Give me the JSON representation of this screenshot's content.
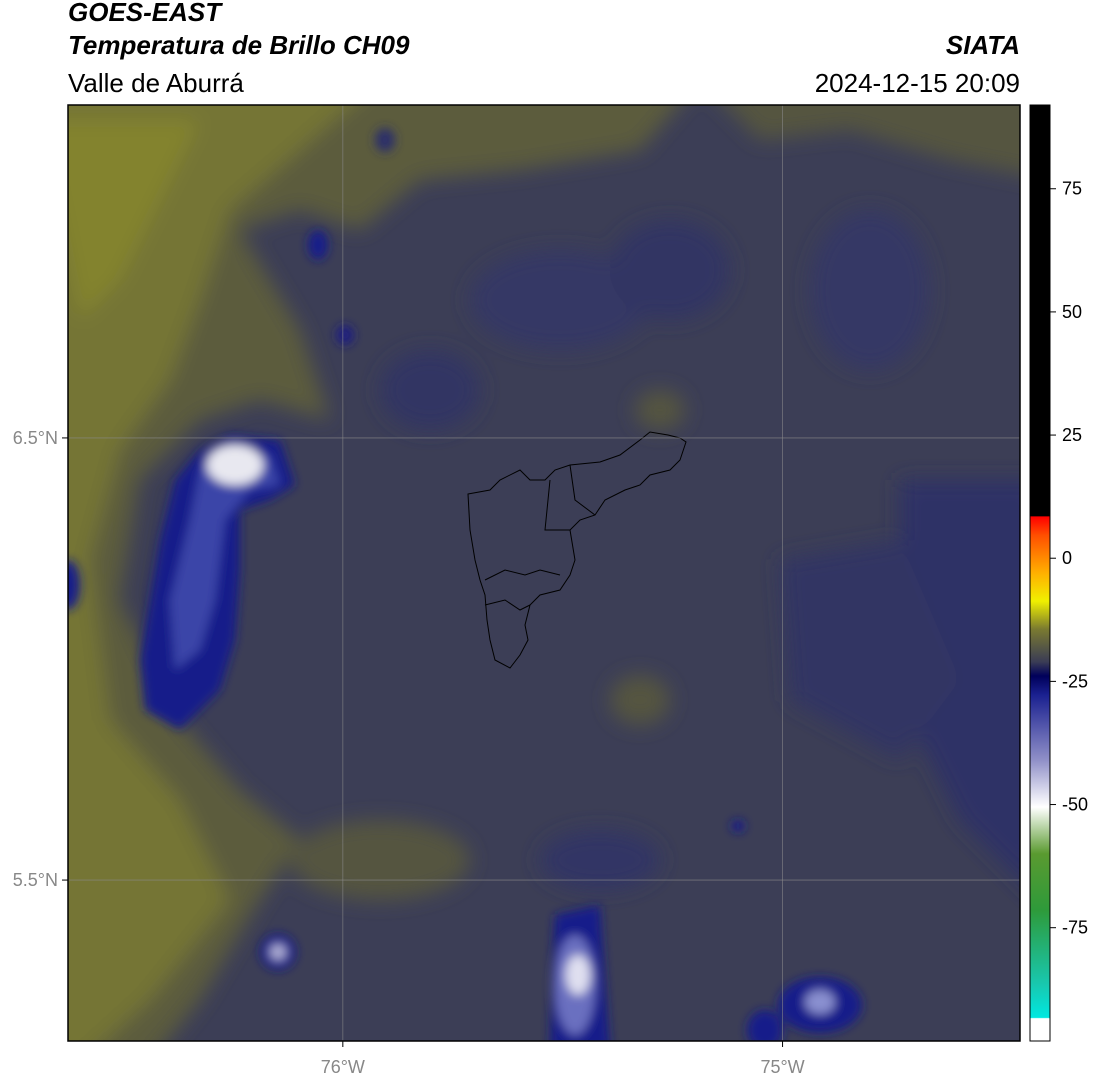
{
  "header": {
    "title": "GOES-EAST",
    "subtitle": "Temperatura de Brillo CH09",
    "region": "Valle de Aburrá",
    "source": "SIATA",
    "datetime": "2024-12-15 20:09"
  },
  "map": {
    "xlim": [
      -76.625,
      -74.46
    ],
    "ylim": [
      5.136,
      7.253
    ],
    "xticks": [
      {
        "value": -76,
        "label": "76°W"
      },
      {
        "value": -75,
        "label": "75°W"
      }
    ],
    "yticks": [
      {
        "value": 6.5,
        "label": "6.5°N"
      },
      {
        "value": 5.5,
        "label": "5.5°N"
      }
    ],
    "grid": true
  },
  "colorbar": {
    "lim": [
      -98,
      92
    ],
    "ticks": [
      -75,
      -50,
      -25,
      0,
      25,
      50,
      75
    ]
  }
}
